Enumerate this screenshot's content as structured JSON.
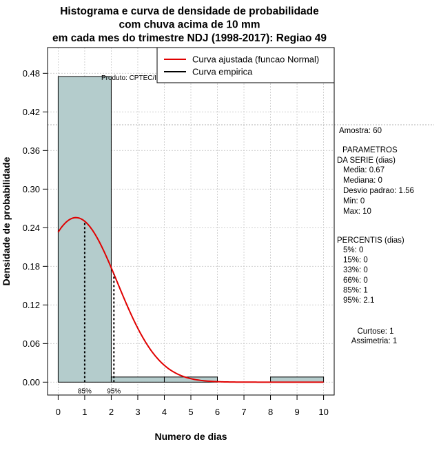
{
  "chart_data": {
    "type": "bar",
    "title_lines": [
      "Histograma e curva de densidade de probabilidade",
      "com chuva acima de 10 mm",
      "em cada mes do trimestre NDJ (1998-2017): Regiao 49"
    ],
    "xlabel": "Numero de dias",
    "ylabel": "Densidade de probabilidade",
    "xlim": [
      -0.4,
      10.4
    ],
    "ylim": [
      -0.02,
      0.52
    ],
    "x_ticks": [
      0,
      1,
      2,
      3,
      4,
      5,
      6,
      7,
      8,
      9,
      10
    ],
    "y_ticks": [
      0.0,
      0.06,
      0.12,
      0.18,
      0.24,
      0.3,
      0.36,
      0.42,
      0.48
    ],
    "y_tick_labels": [
      "0.00",
      "0.06",
      "0.12",
      "0.18",
      "0.24",
      "0.30",
      "0.36",
      "0.42",
      "0.48"
    ],
    "grid": true,
    "bins": [
      {
        "x0": 0,
        "x1": 2,
        "density": 0.475
      },
      {
        "x0": 2,
        "x1": 4,
        "density": 0.008
      },
      {
        "x0": 4,
        "x1": 6,
        "density": 0.008
      },
      {
        "x0": 6,
        "x1": 8,
        "density": 0.0
      },
      {
        "x0": 8,
        "x1": 10,
        "density": 0.008
      }
    ],
    "bar_color": "#b4cccc",
    "fitted_curve": {
      "name": "Curva ajustada (funcao Normal)",
      "color": "#e00000",
      "distribution": "normal",
      "mean": 0.67,
      "sd": 1.56,
      "x_range": [
        0,
        10
      ]
    },
    "empirical_curve": {
      "name": "Curva empirica",
      "color": "#000000"
    },
    "percentile_markers": [
      {
        "label": "85%",
        "x": 1.0
      },
      {
        "label": "95%",
        "x": 2.1
      }
    ],
    "dotted_hline_y": 0.4,
    "product_label": "Produto: CPTEC/INPE",
    "legend_position": "top-right"
  },
  "stats": {
    "amostra": "Amostra: 60",
    "params_header": [
      "PARAMETROS",
      "DA SERIE (dias)"
    ],
    "params": [
      "Media: 0.67",
      "Mediana: 0",
      "Desvio padrao: 1.56",
      "Min: 0",
      "Max: 10"
    ],
    "percentis_header": "PERCENTIS (dias)",
    "percentis": [
      "5%: 0",
      "15%: 0",
      "33%: 0",
      "66%: 0",
      "85%: 1",
      "95%: 2.1"
    ],
    "curtose": "Curtose: 1",
    "assimetria": "Assimetria: 1"
  }
}
